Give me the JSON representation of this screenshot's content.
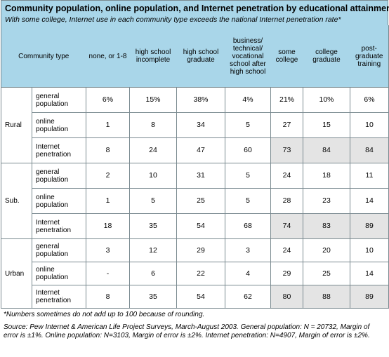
{
  "title": "Community population, online population, and Internet penetration by educational attainment",
  "subtitle": "With some college, Internet use in each community type exceeds the national Internet penetration rate*",
  "columns": {
    "community_type": "Community type",
    "c0": "none, or 1-8",
    "c1": "high school incomplete",
    "c2": "high school graduate",
    "c3": "business/ technical/ vocational school after high school",
    "c4": "some college",
    "c5": "college graduate",
    "c6": "post-graduate training"
  },
  "groups": [
    {
      "label": "Rural",
      "rows": [
        {
          "label": "general population",
          "values": [
            "6%",
            "15%",
            "38%",
            "4%",
            "21%",
            "10%",
            "6%"
          ]
        },
        {
          "label": "online population",
          "values": [
            "1",
            "8",
            "34",
            "5",
            "27",
            "15",
            "10"
          ]
        },
        {
          "label": "Internet penetration",
          "values": [
            "8",
            "24",
            "47",
            "60",
            "73",
            "84",
            "84"
          ]
        }
      ]
    },
    {
      "label": "Sub.",
      "rows": [
        {
          "label": "general population",
          "values": [
            "2",
            "10",
            "31",
            "5",
            "24",
            "18",
            "11"
          ]
        },
        {
          "label": "online population",
          "values": [
            "1",
            "5",
            "25",
            "5",
            "28",
            "23",
            "14"
          ]
        },
        {
          "label": "Internet penetration",
          "values": [
            "18",
            "35",
            "54",
            "68",
            "74",
            "83",
            "89"
          ]
        }
      ]
    },
    {
      "label": "Urban",
      "rows": [
        {
          "label": "general population",
          "values": [
            "3",
            "12",
            "29",
            "3",
            "24",
            "20",
            "10"
          ]
        },
        {
          "label": "online population",
          "values": [
            "-",
            "6",
            "22",
            "4",
            "29",
            "25",
            "14"
          ]
        },
        {
          "label": "Internet penetration",
          "values": [
            "8",
            "35",
            "54",
            "62",
            "80",
            "88",
            "89"
          ]
        }
      ]
    }
  ],
  "highlight_color": "#e4e4e4",
  "header_color": "#a9d6e9",
  "notes": {
    "rounding": "*Numbers sometimes do not add up to 100 because of rounding.",
    "source": "Source: Pew Internet & American Life Project Surveys, March-August 2003. General population: N = 20732, Margin of error is ±1%. Online population: N=3103, Margin of error is ±2%. Internet penetration: N=4907, Margin of error is ±2%."
  }
}
